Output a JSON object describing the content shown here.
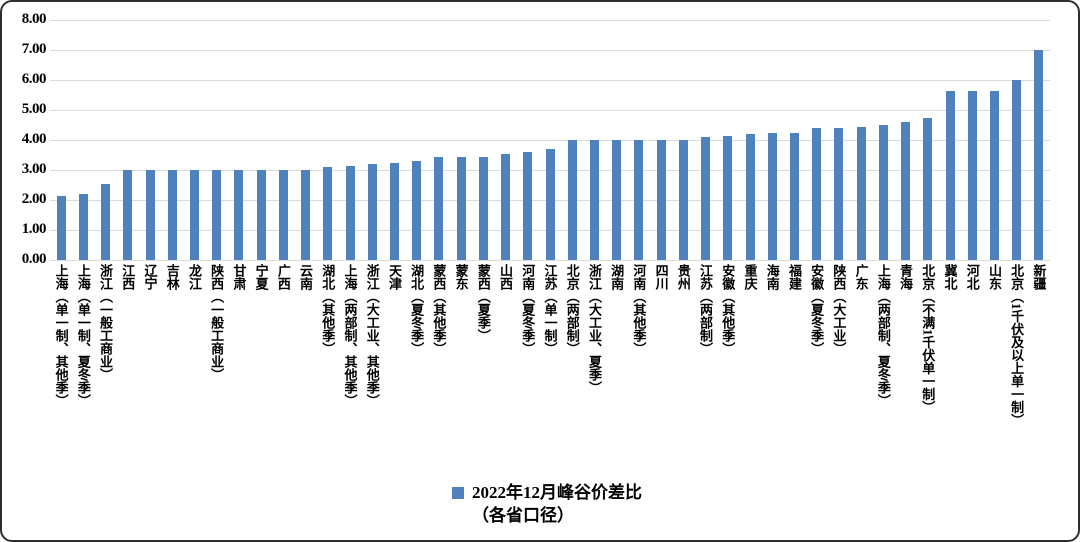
{
  "colors": {
    "bar": "#4f81bd",
    "gridline": "#dcdcdc",
    "border": "#2e2e2e",
    "background": "#ffffff",
    "text": "#000000"
  },
  "y_axis": {
    "ticks": [
      "8.00",
      "7.00",
      "6.00",
      "5.00",
      "4.00",
      "3.00",
      "2.00",
      "1.00",
      "0.00"
    ]
  },
  "legend": {
    "line1": "2022年12月峰谷价差比",
    "line2": "（各省口径）"
  },
  "chart_data": {
    "type": "bar",
    "title": "",
    "xlabel": "",
    "ylabel": "",
    "legend": "2022年12月峰谷价差比（各省口径）",
    "legend_position": "bottom",
    "grid": true,
    "ylim": [
      0,
      8
    ],
    "ytick_step": 1,
    "bar_color": "#4f81bd",
    "categories": [
      "上海（单一制、其他季）",
      "上海（单一制、夏冬季）",
      "浙江（一般工商业）",
      "江西",
      "辽宁",
      "吉林",
      "龙江",
      "陕西（一般工商业）",
      "甘肃",
      "宁夏",
      "广西",
      "云南",
      "湖北（其他季）",
      "上海（两部制、其他季）",
      "浙江（大工业、其他季）",
      "天津",
      "湖北（夏冬季）",
      "蒙西（其他季）",
      "蒙东",
      "蒙西（夏季）",
      "山西",
      "河南（夏冬季）",
      "江苏（单一制）",
      "北京（两部制）",
      "浙江（大工业、夏季）",
      "湖南",
      "河南（其他季）",
      "四川",
      "贵州",
      "江苏（两部制）",
      "安徽（其他季）",
      "重庆",
      "海南",
      "福建",
      "安徽（夏冬季）",
      "陕西（大工业）",
      "广东",
      "上海（两部制、夏冬季）",
      "青海",
      "北京（不满1千伏单一制）",
      "冀北",
      "河北",
      "山东",
      "北京（1千伏及以上单一制）",
      "新疆"
    ],
    "values": [
      2.15,
      2.2,
      2.55,
      3.0,
      3.0,
      3.0,
      3.0,
      3.0,
      3.0,
      3.0,
      3.0,
      3.0,
      3.1,
      3.15,
      3.2,
      3.25,
      3.3,
      3.45,
      3.45,
      3.45,
      3.55,
      3.6,
      3.7,
      4.0,
      4.0,
      4.0,
      4.0,
      4.0,
      4.0,
      4.1,
      4.15,
      4.2,
      4.25,
      4.25,
      4.4,
      4.4,
      4.45,
      4.5,
      4.6,
      4.75,
      5.65,
      5.65,
      5.65,
      6.0,
      7.0
    ]
  }
}
